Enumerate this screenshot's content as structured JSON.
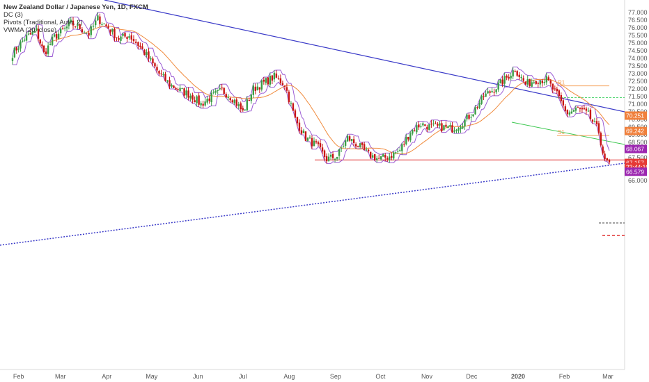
{
  "legend": {
    "title": "New Zealand Dollar / Japanese Yen, 1D, FXCM",
    "line2": "DC (3)",
    "line3": "Pivots (Traditional, Auto, 2)",
    "line4": "VWMA (20, close)"
  },
  "chart_data": {
    "type": "candlestick",
    "title": "New Zealand Dollar / Japanese Yen, 1D, FXCM",
    "indicators": [
      "DC (3)",
      "Pivots (Traditional, Auto, 2)",
      "VWMA (20, close)"
    ],
    "x_ticks": [
      "Feb",
      "Mar",
      "Apr",
      "May",
      "Jun",
      "Jul",
      "Aug",
      "Sep",
      "Oct",
      "Nov",
      "Dec",
      "2020",
      "Feb",
      "Mar"
    ],
    "y_ticks": [
      "77.000",
      "76.500",
      "76.000",
      "75.500",
      "75.000",
      "74.500",
      "74.000",
      "73.500",
      "73.000",
      "72.500",
      "72.000",
      "71.500",
      "71.000",
      "70.500",
      "70.000",
      "69.500",
      "69.000",
      "68.500",
      "68.000",
      "67.500",
      "67.000",
      "66.500",
      "66.000"
    ],
    "ylim": [
      65.8,
      77.3
    ],
    "close_series": [
      [
        "2019-01-28",
        74.3
      ],
      [
        "2019-02-05",
        75.3
      ],
      [
        "2019-02-13",
        75.8
      ],
      [
        "2019-02-18",
        74.3
      ],
      [
        "2019-02-25",
        75.4
      ],
      [
        "2019-03-04",
        75.9
      ],
      [
        "2019-03-08",
        76.3
      ],
      [
        "2019-03-14",
        76.0
      ],
      [
        "2019-03-20",
        75.6
      ],
      [
        "2019-03-26",
        76.6
      ],
      [
        "2019-04-02",
        76.0
      ],
      [
        "2019-04-09",
        75.3
      ],
      [
        "2019-04-16",
        75.5
      ],
      [
        "2019-04-22",
        74.9
      ],
      [
        "2019-04-29",
        74.0
      ],
      [
        "2019-05-06",
        73.0
      ],
      [
        "2019-05-13",
        72.3
      ],
      [
        "2019-05-20",
        71.9
      ],
      [
        "2019-05-27",
        71.6
      ],
      [
        "2019-06-03",
        71.0
      ],
      [
        "2019-06-10",
        71.5
      ],
      [
        "2019-06-17",
        71.9
      ],
      [
        "2019-06-24",
        71.4
      ],
      [
        "2019-07-01",
        70.5
      ],
      [
        "2019-07-08",
        72.0
      ],
      [
        "2019-07-15",
        72.4
      ],
      [
        "2019-07-22",
        72.8
      ],
      [
        "2019-07-29",
        72.3
      ],
      [
        "2019-08-05",
        70.0
      ],
      [
        "2019-08-12",
        68.8
      ],
      [
        "2019-08-19",
        68.3
      ],
      [
        "2019-08-26",
        67.4
      ],
      [
        "2019-09-02",
        67.6
      ],
      [
        "2019-09-09",
        68.8
      ],
      [
        "2019-09-16",
        68.3
      ],
      [
        "2019-09-23",
        67.7
      ],
      [
        "2019-09-30",
        67.4
      ],
      [
        "2019-10-07",
        67.6
      ],
      [
        "2019-10-14",
        68.0
      ],
      [
        "2019-10-21",
        69.2
      ],
      [
        "2019-10-28",
        69.7
      ],
      [
        "2019-11-04",
        69.5
      ],
      [
        "2019-11-11",
        69.5
      ],
      [
        "2019-11-18",
        69.4
      ],
      [
        "2019-11-25",
        69.8
      ],
      [
        "2019-12-02",
        70.5
      ],
      [
        "2019-12-09",
        71.5
      ],
      [
        "2019-12-16",
        72.0
      ],
      [
        "2019-12-23",
        72.6
      ],
      [
        "2019-12-30",
        73.3
      ],
      [
        "2020-01-06",
        72.3
      ],
      [
        "2020-01-13",
        72.6
      ],
      [
        "2020-01-20",
        72.6
      ],
      [
        "2020-01-27",
        71.6
      ],
      [
        "2020-02-03",
        70.4
      ],
      [
        "2020-02-10",
        70.7
      ],
      [
        "2020-02-17",
        70.3
      ],
      [
        "2020-02-24",
        69.2
      ],
      [
        "2020-02-28",
        67.2
      ],
      [
        "2020-03-02",
        67.2
      ]
    ],
    "lines": [
      {
        "name": "resistance",
        "color": "#3a3ac8",
        "style": "solid"
      },
      {
        "name": "support",
        "color": "#3a3ac8",
        "style": "dotted"
      },
      {
        "name": "channel",
        "color": "#3cc850",
        "style": "solid"
      }
    ],
    "pivot_levels": [
      {
        "label": "R1",
        "value": 72.2,
        "color": "#f5a05a"
      },
      {
        "label": "S1",
        "value": 68.95,
        "color": "#f5a05a"
      }
    ],
    "horizontal_lines": [
      {
        "value": 67.35,
        "color": "#e03030"
      },
      {
        "value": 71.43,
        "color": "#5ad878"
      }
    ],
    "price_labels": [
      {
        "text": "70.251",
        "value": 70.251,
        "color": "#f0803c"
      },
      {
        "text": "69.242",
        "value": 69.242,
        "color": "#f0803c"
      },
      {
        "text": "68.067",
        "value": 68.067,
        "color": "#9c27b0"
      },
      {
        "text": "67.157",
        "value": 67.157,
        "color": "#e53935"
      },
      {
        "text": "23:44:10",
        "value": 66.88,
        "color": "#e53935"
      },
      {
        "text": "66.579",
        "value": 66.579,
        "color": "#9c27b0"
      }
    ],
    "colors": {
      "up": "#3a9c46",
      "down": "#c81414",
      "dc_border": "#9b5bd4",
      "vwma": "#f08a3c"
    }
  }
}
